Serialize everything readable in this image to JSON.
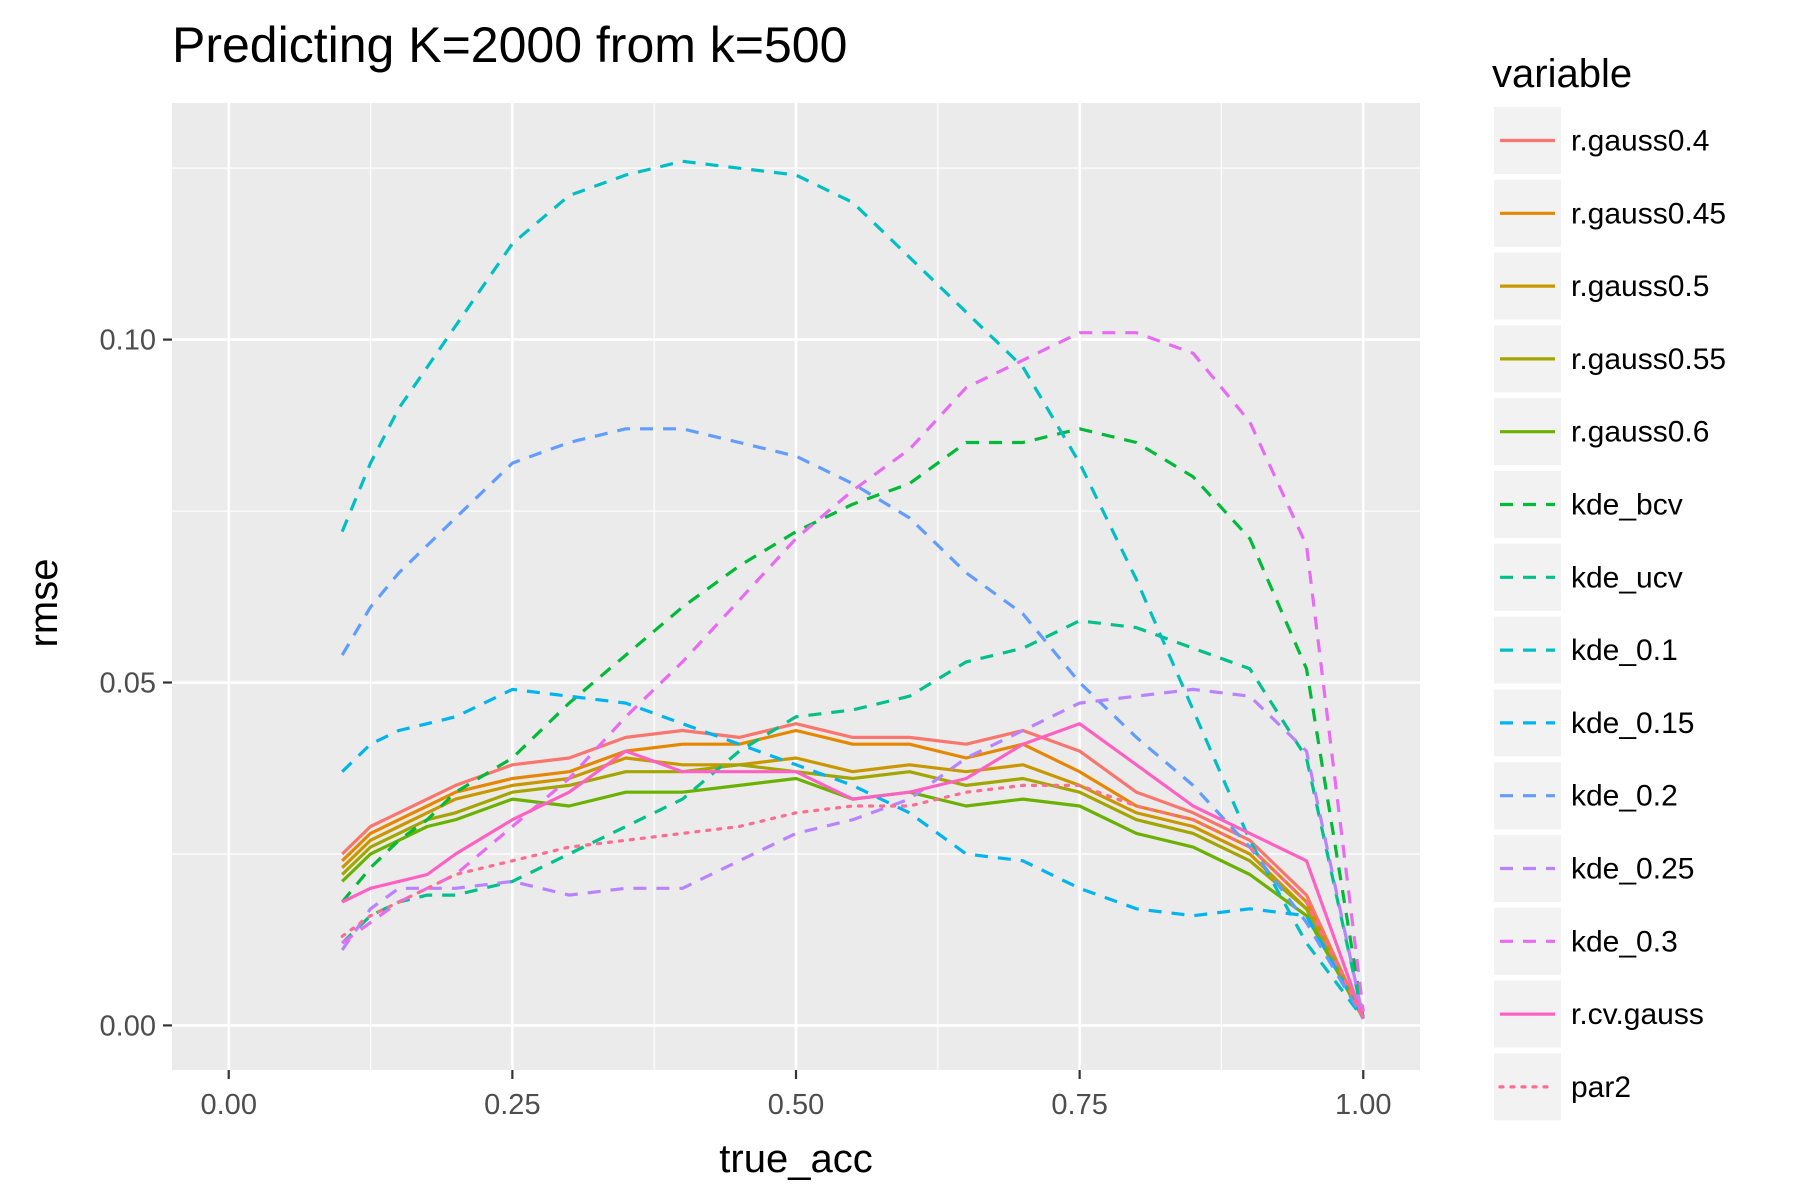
{
  "chart_data": {
    "type": "line",
    "title": "Predicting K=2000 from k=500",
    "xlabel": "true_acc",
    "ylabel": "rmse",
    "xlim": [
      -0.05,
      1.05
    ],
    "ylim": [
      -0.0065,
      0.1345
    ],
    "x_ticks": [
      0,
      0.25,
      0.5,
      0.75,
      1.0
    ],
    "x_tick_labels": [
      "0.00",
      "0.25",
      "0.50",
      "0.75",
      "1.00"
    ],
    "y_ticks": [
      0,
      0.05,
      0.1
    ],
    "y_tick_labels": [
      "0.00",
      "0.05",
      "0.10"
    ],
    "grid": true,
    "legend_title": "variable",
    "legend_position": "right",
    "series": [
      {
        "name": "r.gauss0.4",
        "color": "#F8766D",
        "dash": "solid",
        "x": [
          0.1,
          0.125,
          0.15,
          0.175,
          0.2,
          0.25,
          0.3,
          0.35,
          0.4,
          0.45,
          0.5,
          0.55,
          0.6,
          0.65,
          0.7,
          0.75,
          0.8,
          0.85,
          0.9,
          0.95,
          1.0
        ],
        "y": [
          0.025,
          0.029,
          0.031,
          0.033,
          0.035,
          0.038,
          0.039,
          0.042,
          0.043,
          0.042,
          0.044,
          0.042,
          0.042,
          0.041,
          0.043,
          0.04,
          0.034,
          0.031,
          0.027,
          0.019,
          0.001
        ]
      },
      {
        "name": "r.gauss0.45",
        "color": "#E58700",
        "dash": "solid",
        "x": [
          0.1,
          0.125,
          0.15,
          0.175,
          0.2,
          0.25,
          0.3,
          0.35,
          0.4,
          0.45,
          0.5,
          0.55,
          0.6,
          0.65,
          0.7,
          0.75,
          0.8,
          0.85,
          0.9,
          0.95,
          1.0
        ],
        "y": [
          0.024,
          0.028,
          0.03,
          0.032,
          0.034,
          0.036,
          0.037,
          0.04,
          0.041,
          0.041,
          0.043,
          0.041,
          0.041,
          0.039,
          0.041,
          0.037,
          0.032,
          0.03,
          0.026,
          0.018,
          0.001
        ]
      },
      {
        "name": "r.gauss0.5",
        "color": "#C99800",
        "dash": "solid",
        "x": [
          0.1,
          0.125,
          0.15,
          0.175,
          0.2,
          0.25,
          0.3,
          0.35,
          0.4,
          0.45,
          0.5,
          0.55,
          0.6,
          0.65,
          0.7,
          0.75,
          0.8,
          0.85,
          0.9,
          0.95,
          1.0
        ],
        "y": [
          0.023,
          0.027,
          0.029,
          0.031,
          0.033,
          0.035,
          0.036,
          0.039,
          0.038,
          0.038,
          0.039,
          0.037,
          0.038,
          0.037,
          0.038,
          0.035,
          0.031,
          0.029,
          0.025,
          0.017,
          0.001
        ]
      },
      {
        "name": "r.gauss0.55",
        "color": "#A3A500",
        "dash": "solid",
        "x": [
          0.1,
          0.125,
          0.15,
          0.175,
          0.2,
          0.25,
          0.3,
          0.35,
          0.4,
          0.45,
          0.5,
          0.55,
          0.6,
          0.65,
          0.7,
          0.75,
          0.8,
          0.85,
          0.9,
          0.95,
          1.0
        ],
        "y": [
          0.022,
          0.026,
          0.028,
          0.03,
          0.031,
          0.034,
          0.035,
          0.037,
          0.037,
          0.038,
          0.037,
          0.036,
          0.037,
          0.035,
          0.036,
          0.034,
          0.03,
          0.028,
          0.024,
          0.017,
          0.001
        ]
      },
      {
        "name": "r.gauss0.6",
        "color": "#6BB100",
        "dash": "solid",
        "x": [
          0.1,
          0.125,
          0.15,
          0.175,
          0.2,
          0.25,
          0.3,
          0.35,
          0.4,
          0.45,
          0.5,
          0.55,
          0.6,
          0.65,
          0.7,
          0.75,
          0.8,
          0.85,
          0.9,
          0.95,
          1.0
        ],
        "y": [
          0.021,
          0.025,
          0.027,
          0.029,
          0.03,
          0.033,
          0.032,
          0.034,
          0.034,
          0.035,
          0.036,
          0.033,
          0.034,
          0.032,
          0.033,
          0.032,
          0.028,
          0.026,
          0.022,
          0.016,
          0.001
        ]
      },
      {
        "name": "kde_bcv",
        "color": "#00BA38",
        "dash": "dashed",
        "x": [
          0.1,
          0.125,
          0.15,
          0.175,
          0.2,
          0.25,
          0.3,
          0.35,
          0.4,
          0.45,
          0.5,
          0.55,
          0.6,
          0.65,
          0.7,
          0.75,
          0.8,
          0.85,
          0.9,
          0.95,
          1.0
        ],
        "y": [
          0.018,
          0.023,
          0.027,
          0.03,
          0.034,
          0.039,
          0.047,
          0.054,
          0.061,
          0.067,
          0.072,
          0.076,
          0.079,
          0.085,
          0.085,
          0.087,
          0.085,
          0.08,
          0.071,
          0.052,
          0.001
        ]
      },
      {
        "name": "kde_ucv",
        "color": "#00C08B",
        "dash": "dashed",
        "x": [
          0.1,
          0.125,
          0.15,
          0.175,
          0.2,
          0.25,
          0.3,
          0.35,
          0.4,
          0.45,
          0.5,
          0.55,
          0.6,
          0.65,
          0.7,
          0.75,
          0.8,
          0.85,
          0.9,
          0.95,
          1.0
        ],
        "y": [
          0.012,
          0.016,
          0.018,
          0.019,
          0.019,
          0.021,
          0.025,
          0.029,
          0.033,
          0.04,
          0.045,
          0.046,
          0.048,
          0.053,
          0.055,
          0.059,
          0.058,
          0.055,
          0.052,
          0.039,
          0.001
        ]
      },
      {
        "name": "kde_0.1",
        "color": "#00BFC4",
        "dash": "dashed",
        "x": [
          0.1,
          0.125,
          0.15,
          0.175,
          0.2,
          0.25,
          0.3,
          0.35,
          0.4,
          0.45,
          0.5,
          0.55,
          0.6,
          0.65,
          0.7,
          0.75,
          0.8,
          0.85,
          0.9,
          0.95,
          1.0
        ],
        "y": [
          0.072,
          0.082,
          0.09,
          0.096,
          0.102,
          0.114,
          0.121,
          0.124,
          0.126,
          0.125,
          0.124,
          0.12,
          0.112,
          0.104,
          0.096,
          0.082,
          0.065,
          0.046,
          0.027,
          0.012,
          0.001
        ]
      },
      {
        "name": "kde_0.15",
        "color": "#00B4F0",
        "dash": "dashed",
        "x": [
          0.1,
          0.125,
          0.15,
          0.175,
          0.2,
          0.25,
          0.3,
          0.35,
          0.4,
          0.45,
          0.5,
          0.55,
          0.6,
          0.65,
          0.7,
          0.75,
          0.8,
          0.85,
          0.9,
          0.95,
          1.0
        ],
        "y": [
          0.037,
          0.041,
          0.043,
          0.044,
          0.045,
          0.049,
          0.048,
          0.047,
          0.044,
          0.041,
          0.038,
          0.035,
          0.031,
          0.025,
          0.024,
          0.02,
          0.017,
          0.016,
          0.017,
          0.016,
          0.001
        ]
      },
      {
        "name": "kde_0.2",
        "color": "#619CFF",
        "dash": "dashed",
        "x": [
          0.1,
          0.125,
          0.15,
          0.175,
          0.2,
          0.25,
          0.3,
          0.35,
          0.4,
          0.45,
          0.5,
          0.55,
          0.6,
          0.65,
          0.7,
          0.75,
          0.8,
          0.85,
          0.9,
          0.95,
          1.0
        ],
        "y": [
          0.054,
          0.061,
          0.066,
          0.07,
          0.074,
          0.082,
          0.085,
          0.087,
          0.087,
          0.085,
          0.083,
          0.079,
          0.074,
          0.066,
          0.06,
          0.05,
          0.042,
          0.035,
          0.026,
          0.015,
          0.001
        ]
      },
      {
        "name": "kde_0.25",
        "color": "#B983FF",
        "dash": "dashed",
        "x": [
          0.1,
          0.125,
          0.15,
          0.175,
          0.2,
          0.25,
          0.3,
          0.35,
          0.4,
          0.45,
          0.5,
          0.55,
          0.6,
          0.65,
          0.7,
          0.75,
          0.8,
          0.85,
          0.9,
          0.95,
          1.0
        ],
        "y": [
          0.011,
          0.017,
          0.02,
          0.02,
          0.02,
          0.021,
          0.019,
          0.02,
          0.02,
          0.024,
          0.028,
          0.03,
          0.033,
          0.039,
          0.043,
          0.047,
          0.048,
          0.049,
          0.048,
          0.04,
          0.001
        ]
      },
      {
        "name": "kde_0.3",
        "color": "#E76BF3",
        "dash": "dashed",
        "x": [
          0.1,
          0.125,
          0.15,
          0.175,
          0.2,
          0.25,
          0.3,
          0.35,
          0.4,
          0.45,
          0.5,
          0.55,
          0.6,
          0.65,
          0.7,
          0.75,
          0.8,
          0.85,
          0.9,
          0.95,
          1.0
        ],
        "y": [
          0.012,
          0.015,
          0.018,
          0.02,
          0.022,
          0.029,
          0.036,
          0.045,
          0.053,
          0.062,
          0.071,
          0.078,
          0.084,
          0.093,
          0.097,
          0.101,
          0.101,
          0.098,
          0.088,
          0.07,
          0.002
        ]
      },
      {
        "name": "r.cv.gauss",
        "color": "#FF61C3",
        "dash": "solid",
        "x": [
          0.1,
          0.125,
          0.15,
          0.175,
          0.2,
          0.25,
          0.3,
          0.35,
          0.4,
          0.45,
          0.5,
          0.55,
          0.6,
          0.65,
          0.7,
          0.75,
          0.8,
          0.85,
          0.9,
          0.95,
          1.0
        ],
        "y": [
          0.018,
          0.02,
          0.021,
          0.022,
          0.025,
          0.03,
          0.034,
          0.04,
          0.037,
          0.037,
          0.037,
          0.033,
          0.034,
          0.036,
          0.041,
          0.044,
          0.038,
          0.032,
          0.028,
          0.024,
          0.001
        ]
      },
      {
        "name": "par2",
        "color": "#FF6C91",
        "dash": "dotted",
        "x": [
          0.1,
          0.125,
          0.15,
          0.175,
          0.2,
          0.25,
          0.3,
          0.35,
          0.4,
          0.45,
          0.5,
          0.55,
          0.6,
          0.65,
          0.7,
          0.75,
          0.8,
          0.85,
          0.9,
          0.95,
          1.0
        ],
        "y": [
          0.013,
          0.016,
          0.018,
          0.02,
          0.022,
          0.024,
          0.026,
          0.027,
          0.028,
          0.029,
          0.031,
          0.032,
          0.032,
          0.034,
          0.035,
          0.035,
          0.032,
          0.03,
          0.026,
          0.018,
          0.001
        ]
      }
    ]
  }
}
